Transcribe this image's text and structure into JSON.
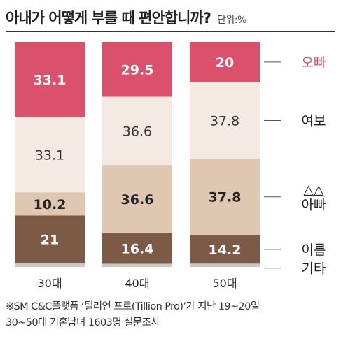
{
  "title": "아내가 어떻게 부를 때 편안합니까?",
  "unit": "단위:%",
  "chart_data": {
    "type": "bar",
    "stacked": true,
    "orientation": "vertical",
    "categories": [
      "30대",
      "40대",
      "50대"
    ],
    "series": [
      {
        "name": "오빠",
        "values": [
          33.1,
          29.5,
          20
        ],
        "labels": [
          "33.1",
          "29.5",
          "20"
        ],
        "color": "#db506b",
        "label_color": "#ffffff",
        "legend_color": "#d6455f"
      },
      {
        "name": "여보",
        "values": [
          33.1,
          36.6,
          37.8
        ],
        "labels": [
          "33.1",
          "36.6",
          "37.8"
        ],
        "color": "#f3ebe3",
        "label_color": "#333333",
        "legend_color": "#222222"
      },
      {
        "name": "△△ 아빠",
        "legend_lines": [
          "△△",
          "아빠"
        ],
        "values": [
          10.2,
          36.6,
          37.8
        ],
        "labels": [
          "10.2",
          "36.6",
          "37.8"
        ],
        "color": "#e0c7b1",
        "label_color": "#222222",
        "legend_color": "#222222"
      },
      {
        "name": "이름",
        "values": [
          21,
          16.4,
          14.2
        ],
        "labels": [
          "21",
          "16.4",
          "14.2"
        ],
        "color": "#7d5a45",
        "label_color": "#ffffff",
        "legend_color": "#222222"
      },
      {
        "name": "기타",
        "values": [
          1.6,
          1.7,
          1.6
        ],
        "labels": [
          null,
          null,
          null
        ],
        "color": "#c7c7c7",
        "label_color": "#222222",
        "legend_color": "#222222"
      }
    ],
    "legend_placement": "right",
    "grid": false
  },
  "footnote": {
    "line1": "※SM C&C플랫폼 ‘틸리언 프로(Tillion Pro)’가 지난 19~20일",
    "line2": "30~50대 기혼남녀 1603명 설문조사"
  }
}
